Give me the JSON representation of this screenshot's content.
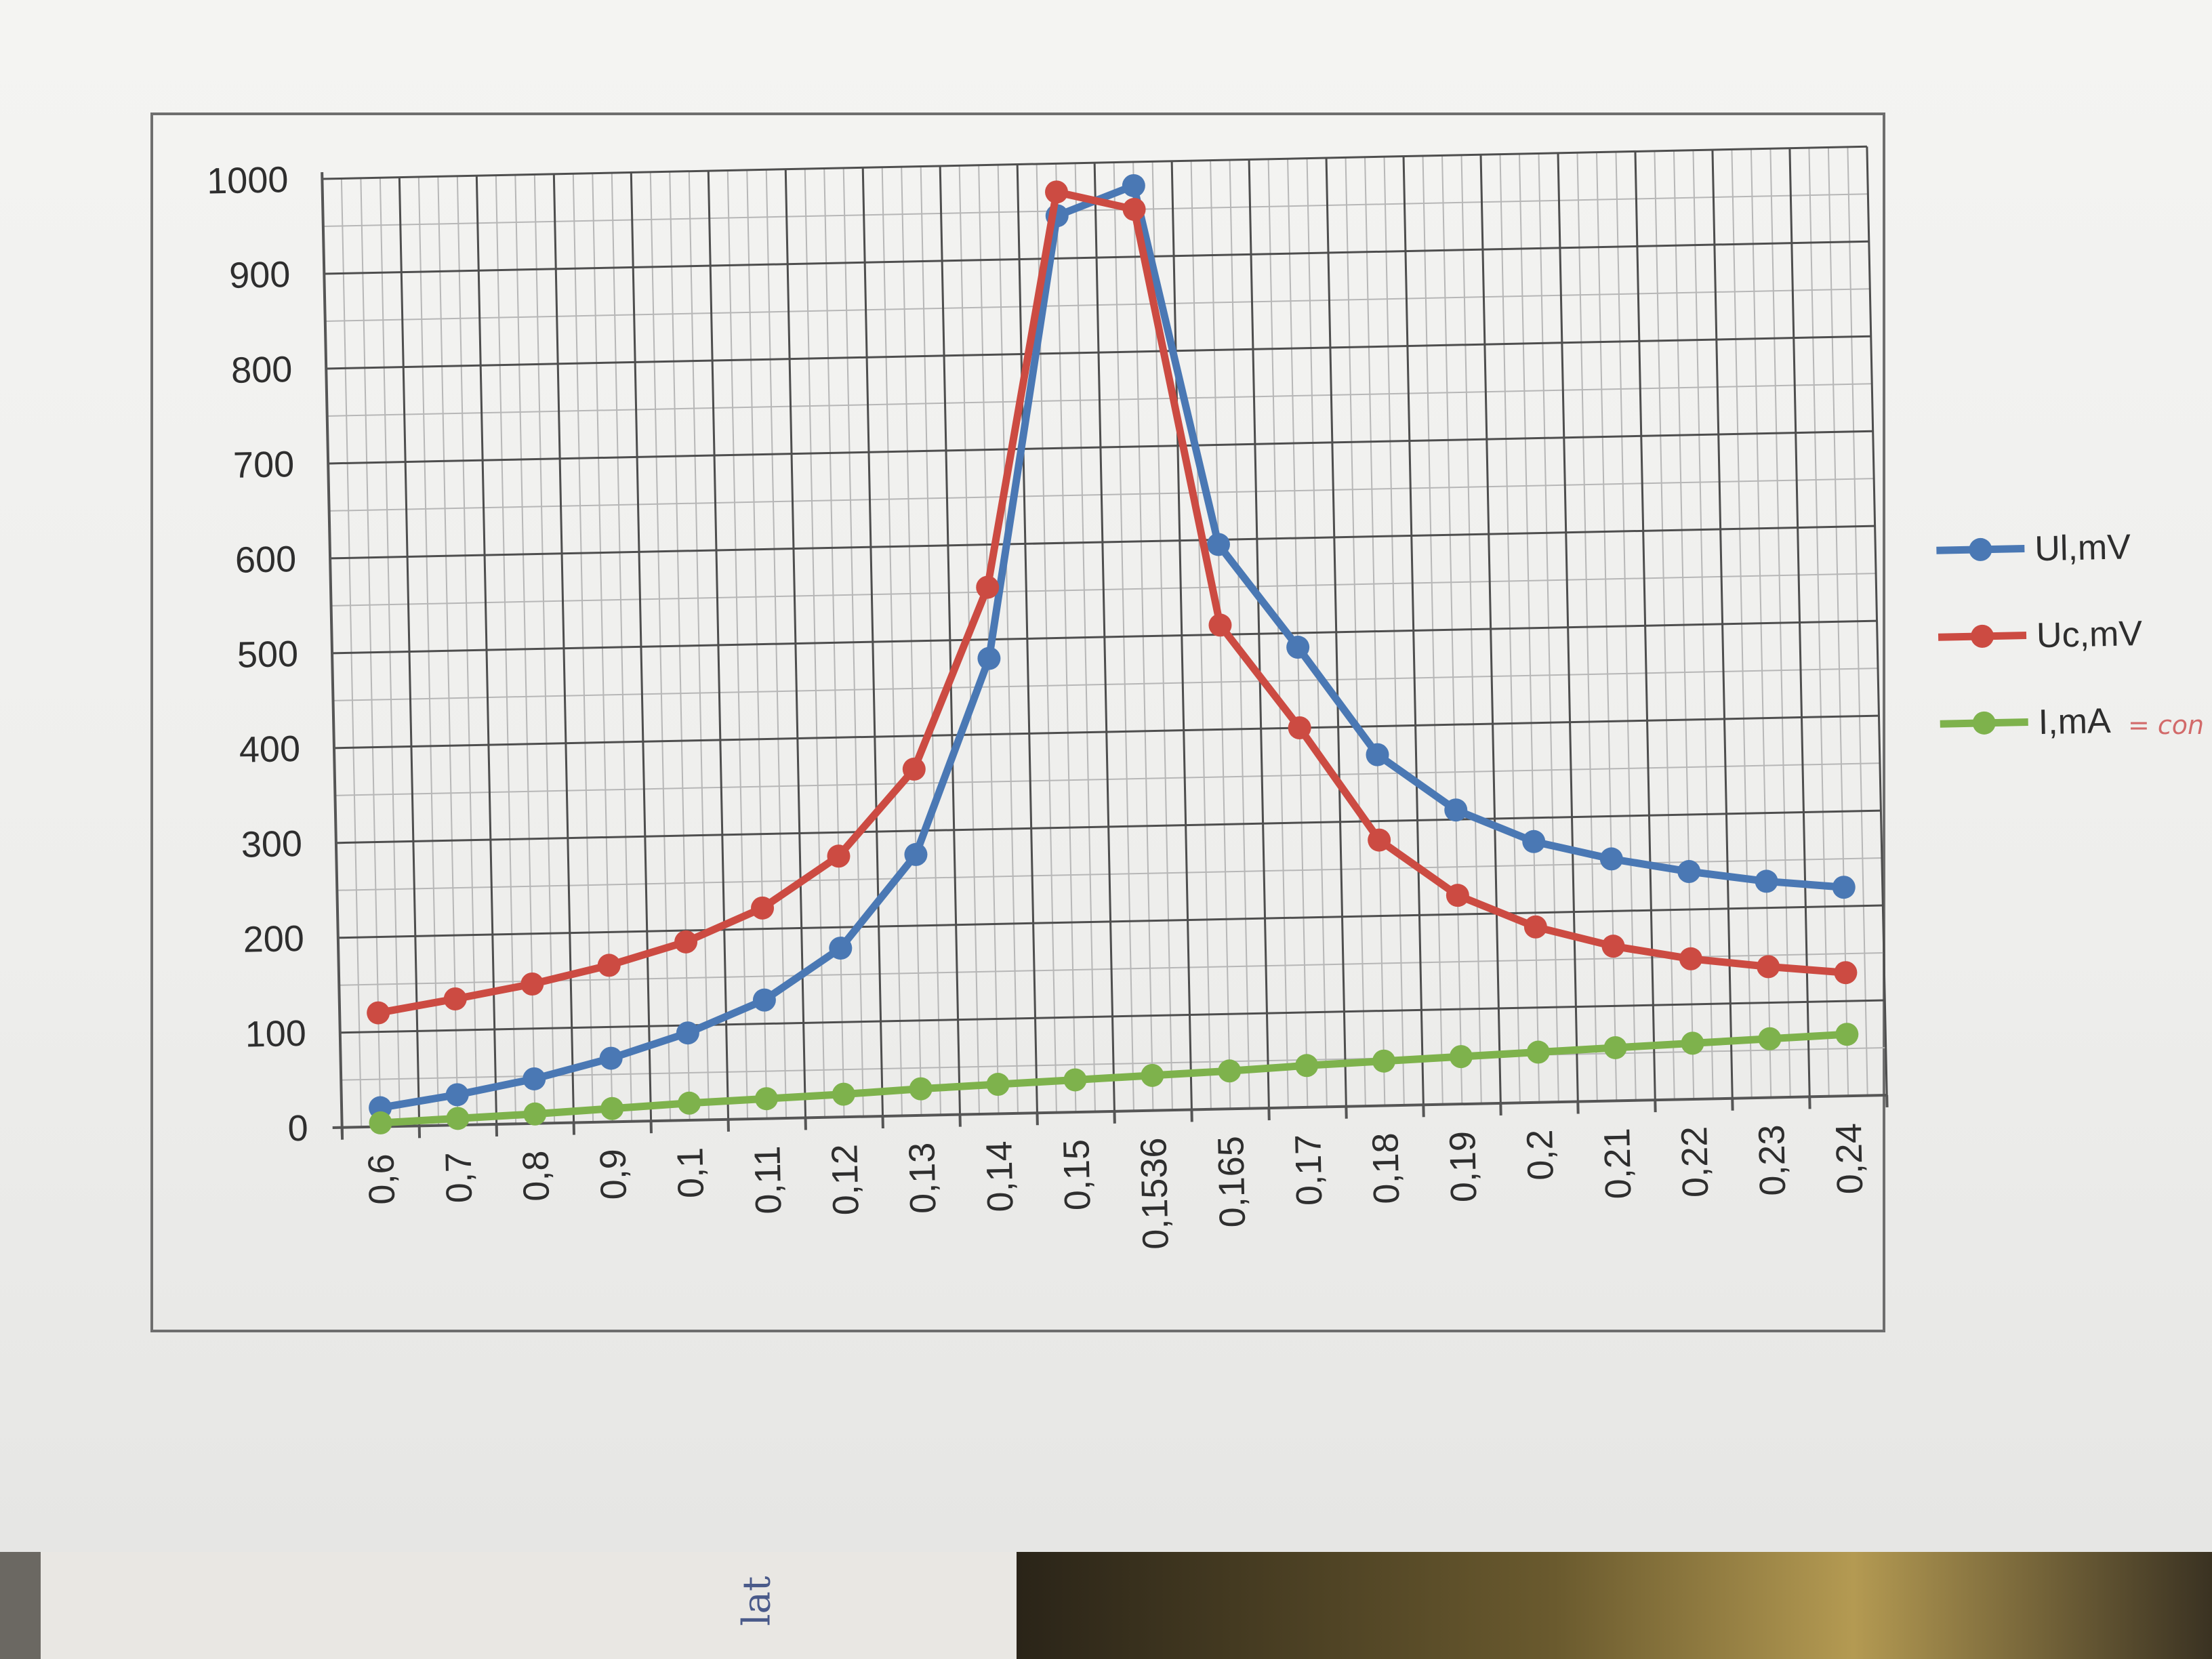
{
  "chart_data": {
    "type": "line",
    "categories": [
      "0,6",
      "0,7",
      "0,8",
      "0,9",
      "0,1",
      "0,11",
      "0,12",
      "0,13",
      "0,14",
      "0,15",
      "0,1536",
      "0,165",
      "0,17",
      "0,18",
      "0,19",
      "0,2",
      "0,21",
      "0,22",
      "0,23",
      "0,24"
    ],
    "series": [
      {
        "name": "Ul,mV",
        "color": "#4a78b4",
        "values": [
          20,
          32,
          47,
          67,
          92,
          125,
          178,
          275,
          480,
          945,
          975,
          595,
          485,
          370,
          310,
          275,
          255,
          240,
          228,
          220
        ]
      },
      {
        "name": "Uc,mV",
        "color": "#cc4b42",
        "values": [
          120,
          133,
          147,
          165,
          188,
          222,
          275,
          365,
          555,
          970,
          950,
          510,
          400,
          280,
          220,
          185,
          163,
          148,
          138,
          130
        ]
      },
      {
        "name": "I,mA",
        "color": "#7eb24c",
        "values": [
          4,
          7,
          10,
          14,
          18,
          21,
          24,
          28,
          31,
          34,
          37,
          40,
          44,
          47,
          50,
          53,
          56,
          59,
          62,
          65
        ]
      }
    ],
    "y_ticks": [
      "0",
      "100",
      "200",
      "300",
      "400",
      "500",
      "600",
      "700",
      "800",
      "900",
      "1000"
    ],
    "ylim": [
      0,
      1000
    ],
    "grid": true,
    "legend_position": "right",
    "legend_note": "= con"
  },
  "page": {
    "handwritten_note": "lat"
  }
}
